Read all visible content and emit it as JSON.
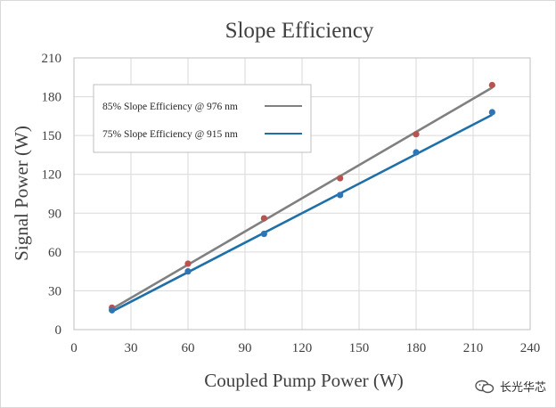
{
  "chart_data": {
    "type": "scatter",
    "title": "Slope Efficiency",
    "xlabel": "Coupled Pump Power (W)",
    "ylabel": "Signal Power (W)",
    "xlim": [
      0,
      240
    ],
    "ylim": [
      0,
      210
    ],
    "xticks": [
      0,
      30,
      60,
      90,
      120,
      150,
      180,
      210,
      240
    ],
    "yticks": [
      0,
      30,
      60,
      90,
      120,
      150,
      180,
      210
    ],
    "grid": true,
    "legend_position": "top-left",
    "series": [
      {
        "name": "85%  Slope Efficiency @ 976 nm",
        "marker_color": "#b85450",
        "line_color": "#808080",
        "points": [
          {
            "x": 20,
            "y": 17
          },
          {
            "x": 60,
            "y": 51
          },
          {
            "x": 100,
            "y": 86
          },
          {
            "x": 140,
            "y": 117
          },
          {
            "x": 180,
            "y": 151
          },
          {
            "x": 220,
            "y": 189
          }
        ],
        "fit": [
          {
            "x": 20,
            "y": 16
          },
          {
            "x": 220,
            "y": 187
          }
        ]
      },
      {
        "name": "75%  Slope Efficiency @ 915 nm",
        "marker_color": "#2e75b6",
        "line_color": "#1f6fa8",
        "points": [
          {
            "x": 20,
            "y": 15
          },
          {
            "x": 60,
            "y": 45
          },
          {
            "x": 100,
            "y": 74
          },
          {
            "x": 140,
            "y": 104
          },
          {
            "x": 180,
            "y": 137
          },
          {
            "x": 220,
            "y": 168
          }
        ],
        "fit": [
          {
            "x": 20,
            "y": 14
          },
          {
            "x": 220,
            "y": 166
          }
        ]
      }
    ]
  },
  "watermark": {
    "text": "长光华芯",
    "icon": "wechat-icon"
  }
}
